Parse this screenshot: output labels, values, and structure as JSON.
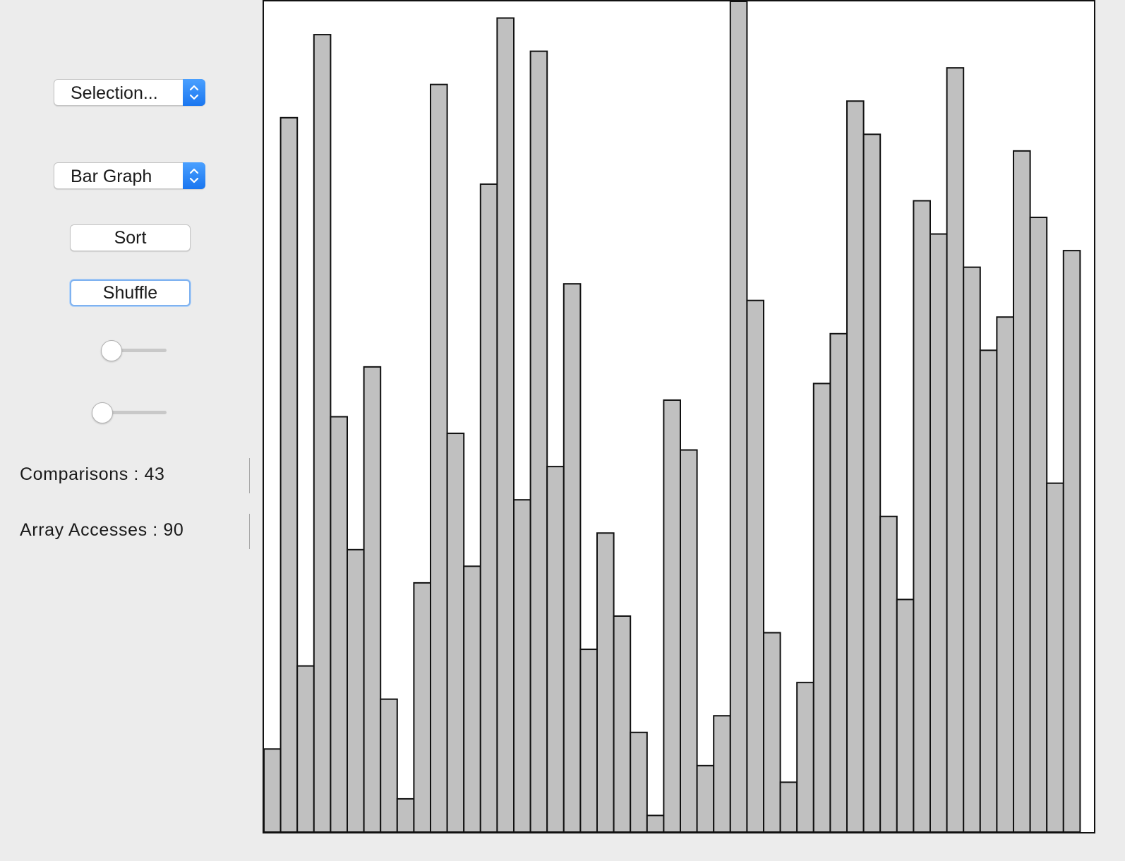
{
  "controls": {
    "algorithm_select": {
      "value": "Selection..."
    },
    "view_select": {
      "value": "Bar Graph"
    },
    "sort_label": "Sort",
    "shuffle_label": "Shuffle"
  },
  "sliders": [
    {
      "name": "speed-slider",
      "value": 0
    },
    {
      "name": "size-slider",
      "value": 0
    }
  ],
  "stats": {
    "comparisons": "Comparisons : 43",
    "array_accesses": "Array Accesses : 90"
  },
  "colors": {
    "bar_fill": "#c0c0c0",
    "bar_stroke": "#111111",
    "accent": "#1a76f0"
  },
  "chart_data": {
    "type": "bar",
    "ylim": [
      0,
      100
    ],
    "values": [
      10,
      86,
      20,
      96,
      50,
      34,
      56,
      16,
      4,
      30,
      90,
      48,
      32,
      78,
      98,
      40,
      94,
      44,
      66,
      22,
      36,
      26,
      12,
      2,
      52,
      46,
      8,
      14,
      100,
      64,
      24,
      6,
      18,
      54,
      60,
      88,
      84,
      38,
      28,
      76,
      72,
      92,
      68,
      58,
      62,
      82,
      74,
      42,
      70
    ]
  }
}
